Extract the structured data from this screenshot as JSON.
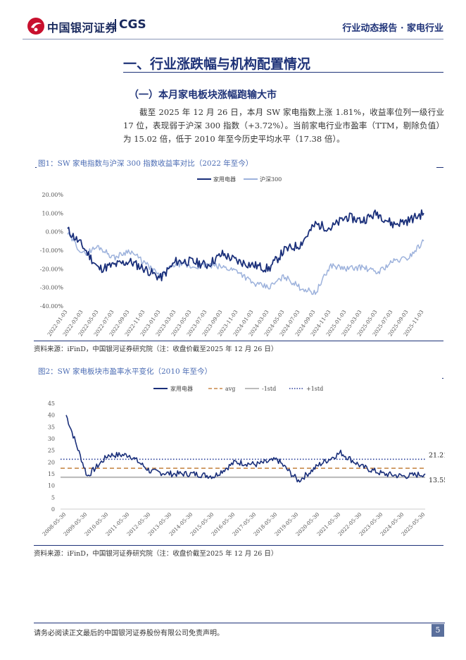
{
  "header": {
    "logo_cn": "中国银河证券",
    "logo_en": "CGS",
    "report_type": "行业动态报告 · 家电行业"
  },
  "section": {
    "title": "一、行业涨跌幅与机构配置情况",
    "subtitle": "（一）本月家电板块涨幅跑输大市",
    "paragraph": "截至 2025 年 12 月 26 日，本月 SW 家电指数上涨 1.81%，收益率位列一级行业 17 位，表现弱于沪深 300 指数（+3.72%）。当前家电行业市盈率（TTM，剔除负值）为 15.02 倍，低于 2010 年至今历史平均水平（17.38 倍）。"
  },
  "figure1": {
    "caption": "图1：SW 家电指数与沪深 300 指数收益率对比（2022 年至今）",
    "source": "资料来源：iFinD，中国银河证券研究院（注：收盘价截至2025 年 12 月 26 日）"
  },
  "figure2": {
    "caption": "图2：SW 家电板块市盈率水平变化（2010 年至今）",
    "source": "资料来源：iFinD，中国银河证券研究院（注：收盘价截至2025 年 12 月 26 日）"
  },
  "chart_data": [
    {
      "type": "line",
      "title": "SW 家电指数与沪深 300 指数收益率对比（2022 年至今）",
      "ylabel": "",
      "xlabel": "",
      "ylim": [
        -40,
        20
      ],
      "yticks": [
        "20.00%",
        "10.00%",
        "0.00%",
        "-10.00%",
        "-20.00%",
        "-30.00%",
        "-40.00%"
      ],
      "x": [
        "2022-01-03",
        "2022-03-03",
        "2022-05-03",
        "2022-07-03",
        "2022-09-03",
        "2022-11-03",
        "2023-01-03",
        "2023-03-03",
        "2023-05-03",
        "2023-07-03",
        "2023-09-03",
        "2023-11-03",
        "2024-01-03",
        "2024-03-03",
        "2024-05-03",
        "2024-07-03",
        "2024-09-03",
        "2024-11-03",
        "2025-01-03",
        "2025-03-03",
        "2025-05-03",
        "2025-07-03",
        "2025-09-03",
        "2025-11-03"
      ],
      "series": [
        {
          "name": "家用电器",
          "color": "#1a2f7a",
          "values": [
            1,
            -8,
            -20,
            -18,
            -16,
            -20,
            -25,
            -16,
            -16,
            -18,
            -12,
            -16,
            -18,
            -20,
            -10,
            -7,
            4,
            2,
            8,
            6,
            10,
            4,
            6,
            10
          ]
        },
        {
          "name": "沪深300",
          "color": "#9db2dc",
          "values": [
            -1,
            -12,
            -8,
            -14,
            -10,
            -17,
            -24,
            -17,
            -19,
            -18,
            -19,
            -21,
            -28,
            -30,
            -24,
            -30,
            -33,
            -18,
            -20,
            -19,
            -22,
            -16,
            -14,
            -5
          ]
        }
      ],
      "legend": "top"
    },
    {
      "type": "line",
      "title": "SW 家电板块市盈率水平变化（2010 年至今）",
      "ylim": [
        0,
        45
      ],
      "yticks": [
        "45",
        "40",
        "35",
        "30",
        "25",
        "20",
        "15",
        "10",
        "5",
        "0"
      ],
      "x": [
        "2008-05-30",
        "2009-05-30",
        "2010-05-30",
        "2011-05-30",
        "2012-05-30",
        "2013-05-30",
        "2014-05-30",
        "2015-05-30",
        "2016-05-30",
        "2017-05-30",
        "2018-05-30",
        "2019-05-30",
        "2020-05-30",
        "2021-05-30",
        "2022-05-30",
        "2023-05-30",
        "2024-05-30",
        "2025-05-30"
      ],
      "series": [
        {
          "name": "家用电器",
          "color": "#1a2f7a",
          "style": "solid",
          "values": [
            40,
            14,
            23,
            23,
            16,
            15,
            15,
            14,
            20,
            19,
            21,
            12,
            19,
            24,
            18,
            15,
            14,
            15
          ]
        },
        {
          "name": "avg",
          "color": "#c8894a",
          "style": "dashed",
          "value": 17.38
        },
        {
          "name": "-1std",
          "color": "#bbbbbb",
          "style": "solid",
          "value": 13.55,
          "label": "13.55"
        },
        {
          "name": "+1std",
          "color": "#2a3f9a",
          "style": "dotted",
          "value": 21.21,
          "label": "21.21"
        }
      ],
      "legend": "top"
    }
  ],
  "footer": {
    "disclaimer": "请务必阅读正文最后的中国银河证券股份有限公司免责声明。",
    "page": "5"
  }
}
